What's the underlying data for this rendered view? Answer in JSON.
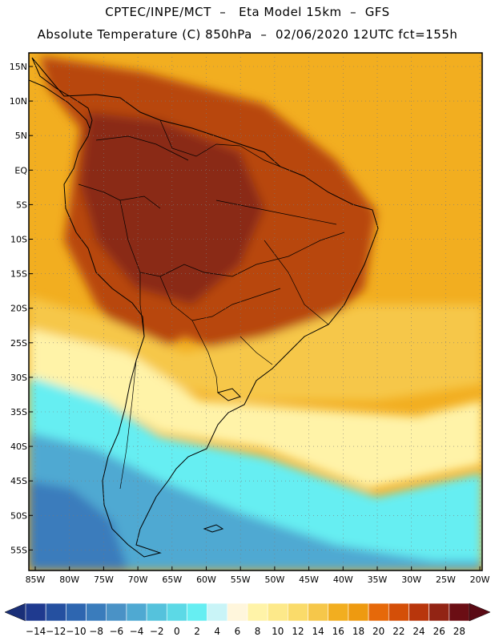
{
  "header": {
    "line1": "CPTEC/INPE/MCT  –   Eta Model 15km  –  GFS",
    "line2": "Absolute Temperature (C) 850hPa  –  02/06/2020 12UTC fct=155h"
  },
  "axes": {
    "lat_labels": [
      "15N",
      "10N",
      "5N",
      "EQ",
      "5S",
      "10S",
      "15S",
      "20S",
      "25S",
      "30S",
      "35S",
      "40S",
      "45S",
      "50S",
      "55S"
    ],
    "lon_labels": [
      "85W",
      "80W",
      "75W",
      "70W",
      "65W",
      "60W",
      "55W",
      "50W",
      "45W",
      "40W",
      "35W",
      "30W",
      "25W",
      "20W"
    ]
  },
  "colorbar": {
    "labels": [
      "-14",
      "-12",
      "-10",
      "-8",
      "-6",
      "-4",
      "-2",
      "0",
      "2",
      "4",
      "6",
      "8",
      "10",
      "12",
      "14",
      "16",
      "18",
      "20",
      "22",
      "24",
      "26",
      "28"
    ],
    "colors": [
      "#1f3a8f",
      "#2550a0",
      "#2e66b0",
      "#3a7cbc",
      "#4a92c6",
      "#4fa9d2",
      "#55c2dc",
      "#5cd9e6",
      "#66eef2",
      "#c9f4f7",
      "#fff6dc",
      "#fff3a8",
      "#fde98a",
      "#fadb6a",
      "#f6c74a",
      "#f2ae20",
      "#ee9a10",
      "#e6690a",
      "#d44f08",
      "#b8360c",
      "#922414",
      "#6b0e14"
    ],
    "low_arrow_color": "#1a2f78",
    "high_arrow_color": "#5a0a14"
  },
  "field": {
    "ocean_north": "#f2ae20",
    "tropics_land": "#b8460c",
    "hot_core": "#8a2a14",
    "subtropics": "#f6c74a",
    "mid_lat": "#fff3a8",
    "cold_south": "#66eef2",
    "cold_deep": "#4fa9d2",
    "coldest": "#3a7cbc"
  }
}
